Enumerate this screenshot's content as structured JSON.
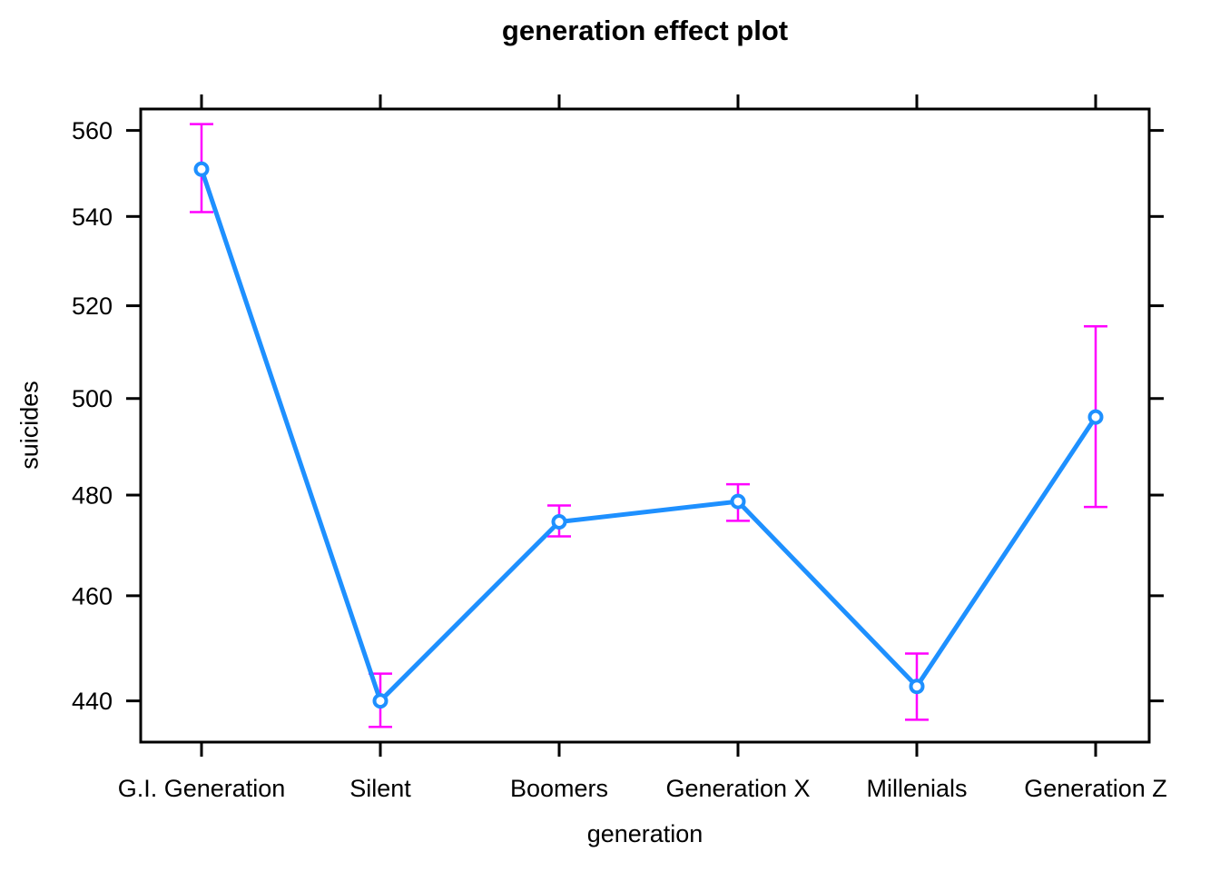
{
  "chart_data": {
    "type": "line",
    "title": "generation effect plot",
    "xlabel": "generation",
    "ylabel": "suicides",
    "categories": [
      "G.I. Generation",
      "Silent",
      "Boomers",
      "Generation X",
      "Millenials",
      "Generation Z"
    ],
    "series": [
      {
        "name": "generation effect",
        "values": [
          550.9,
          440.0,
          474.6,
          478.7,
          442.7,
          496.1
        ],
        "ci_lower": [
          541.0,
          435.2,
          471.7,
          474.8,
          436.5,
          477.6
        ],
        "ci_upper": [
          561.5,
          445.1,
          477.9,
          482.2,
          448.9,
          515.5
        ]
      }
    ],
    "y_ticks": [
      440,
      460,
      480,
      500,
      520,
      540,
      560
    ],
    "y_scale": "log",
    "ylim": [
      432.4,
      565.1
    ],
    "grid": false,
    "legend": false,
    "error_bars": true,
    "marker": "open-circle",
    "colors": {
      "line": "#1E90FF",
      "error_bars": "#FF00FF",
      "axis": "#000000",
      "background": "#FFFFFF"
    }
  }
}
